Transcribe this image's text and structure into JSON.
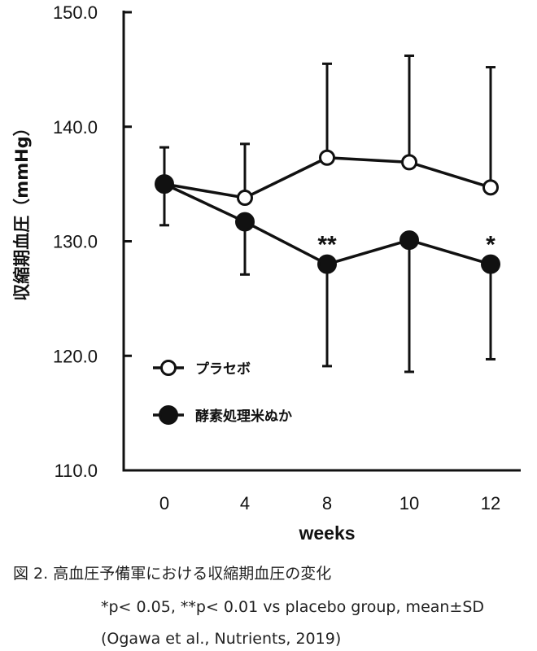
{
  "chart_data": {
    "type": "line",
    "xlabel": "weeks",
    "ylabel": "収縮期血圧（mmHg）",
    "categories": [
      "0",
      "4",
      "8",
      "10",
      "12"
    ],
    "ylim": [
      110,
      150
    ],
    "yticks": [
      "110.0",
      "120.0",
      "130.0",
      "140.0",
      "150.0"
    ],
    "series": [
      {
        "name": "プラセボ",
        "marker": "open-circle",
        "color": "#111111",
        "values": [
          135.0,
          133.8,
          137.3,
          136.9,
          134.7
        ],
        "sd": [
          3.2,
          4.7,
          8.2,
          9.3,
          10.5
        ]
      },
      {
        "name": "酵素処理米ぬか",
        "marker": "filled-circle",
        "color": "#111111",
        "values": [
          135.0,
          131.7,
          128.0,
          130.1,
          128.0
        ],
        "sd": [
          3.6,
          4.6,
          8.9,
          11.5,
          8.3
        ]
      }
    ],
    "annotations": [
      {
        "category": "8",
        "text": "**"
      },
      {
        "category": "12",
        "text": "*"
      }
    ],
    "legend_position": "bottom-left"
  },
  "caption": {
    "title": "図 2. 高血圧予備軍における収縮期血圧の変化",
    "note": "*p< 0.05, **p< 0.01 vs placebo group, mean±SD",
    "source": "(Ogawa et al., Nutrients, 2019)"
  }
}
